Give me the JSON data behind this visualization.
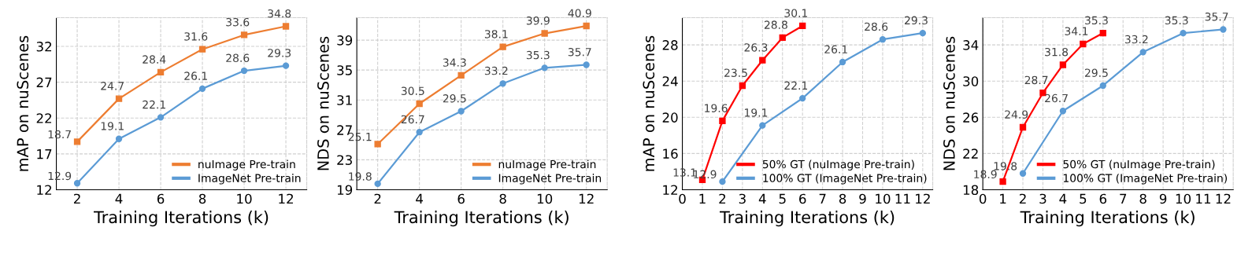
{
  "chart_data": [
    {
      "type": "line",
      "xlabel": "Training Iterations (k)",
      "ylabel": "mAP on nuScenes",
      "xlim": [
        1,
        13
      ],
      "xticks": [
        2,
        4,
        6,
        8,
        10,
        12
      ],
      "ylim": [
        12,
        36
      ],
      "yticks": [
        12,
        17,
        22,
        27,
        32
      ],
      "grid": true,
      "legend": "bottom right",
      "data_labels": true,
      "series": [
        {
          "name": "nuImage Pre-train",
          "color": "#ed7d31",
          "marker": "square",
          "x": [
            2,
            4,
            6,
            8,
            10,
            12
          ],
          "values": [
            18.7,
            24.7,
            28.4,
            31.6,
            33.6,
            34.8
          ]
        },
        {
          "name": "ImageNet Pre-train",
          "color": "#5b9bd5",
          "marker": "circle",
          "x": [
            2,
            4,
            6,
            8,
            10,
            12
          ],
          "values": [
            12.9,
            19.1,
            22.1,
            26.1,
            28.6,
            29.3
          ]
        }
      ]
    },
    {
      "type": "line",
      "xlabel": "Training Iterations (k)",
      "ylabel": "NDS on nuScenes",
      "xlim": [
        1,
        13
      ],
      "xticks": [
        2,
        4,
        6,
        8,
        10,
        12
      ],
      "ylim": [
        19,
        42
      ],
      "yticks": [
        19,
        23,
        27,
        31,
        35,
        39
      ],
      "grid": true,
      "legend": "bottom right",
      "data_labels": true,
      "series": [
        {
          "name": "nuImage Pre-train",
          "color": "#ed7d31",
          "marker": "square",
          "x": [
            2,
            4,
            6,
            8,
            10,
            12
          ],
          "values": [
            25.1,
            30.5,
            34.3,
            38.1,
            39.9,
            40.9
          ]
        },
        {
          "name": "ImageNet Pre-train",
          "color": "#5b9bd5",
          "marker": "circle",
          "x": [
            2,
            4,
            6,
            8,
            10,
            12
          ],
          "values": [
            19.8,
            26.7,
            29.5,
            33.2,
            35.3,
            35.7
          ]
        }
      ]
    },
    {
      "type": "line",
      "xlabel": "Training Iterations (k)",
      "ylabel": "mAP on nuScenes",
      "xlim": [
        0,
        12.5
      ],
      "xticks": [
        0,
        1,
        2,
        3,
        4,
        5,
        6,
        7,
        8,
        9,
        10,
        11,
        12
      ],
      "ylim": [
        12,
        31
      ],
      "yticks": [
        12,
        16,
        20,
        24,
        28
      ],
      "grid": true,
      "legend": "bottom right",
      "data_labels": true,
      "series": [
        {
          "name": "50% GT (nuImage Pre-train)",
          "color": "#ff0000",
          "marker": "square",
          "x": [
            1,
            2,
            3,
            4,
            5,
            6
          ],
          "values": [
            13.1,
            19.6,
            23.5,
            26.3,
            28.8,
            30.1
          ]
        },
        {
          "name": "100% GT (ImageNet Pre-train)",
          "color": "#5b9bd5",
          "marker": "circle",
          "x": [
            2,
            4,
            6,
            8,
            10,
            12
          ],
          "values": [
            12.9,
            19.1,
            22.1,
            26.1,
            28.6,
            29.3
          ]
        }
      ]
    },
    {
      "type": "line",
      "xlabel": "Training Iterations (k)",
      "ylabel": "NDS on nuScenes",
      "xlim": [
        0,
        12.5
      ],
      "xticks": [
        0,
        1,
        2,
        3,
        4,
        5,
        6,
        7,
        8,
        9,
        10,
        11,
        12
      ],
      "ylim": [
        18,
        37
      ],
      "yticks": [
        18,
        22,
        26,
        30,
        34
      ],
      "grid": true,
      "legend": "bottom right",
      "data_labels": true,
      "series": [
        {
          "name": "50% GT (nuImage Pre-train)",
          "color": "#ff0000",
          "marker": "square",
          "x": [
            1,
            2,
            3,
            4,
            5,
            6
          ],
          "values": [
            18.9,
            24.9,
            28.7,
            31.8,
            34.1,
            35.3
          ]
        },
        {
          "name": "100% GT (ImageNet Pre-train)",
          "color": "#5b9bd5",
          "marker": "circle",
          "x": [
            2,
            4,
            6,
            8,
            10,
            12
          ],
          "values": [
            19.8,
            26.7,
            29.5,
            33.2,
            35.3,
            35.7
          ]
        }
      ]
    }
  ]
}
